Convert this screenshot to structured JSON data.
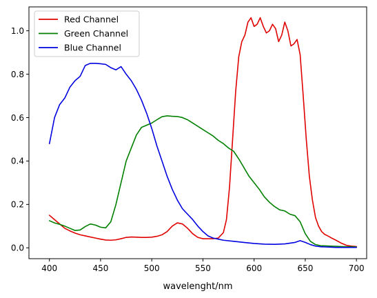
{
  "chart_data": {
    "type": "line",
    "title": "",
    "xlabel": "wavelenght/nm",
    "ylabel": "",
    "xlim": [
      380,
      710
    ],
    "ylim": [
      -0.05,
      1.11
    ],
    "xticks": [
      400,
      450,
      500,
      550,
      600,
      650,
      700
    ],
    "yticks": [
      0.0,
      0.2,
      0.4,
      0.6,
      0.8,
      1.0
    ],
    "xtick_labels": [
      "400",
      "450",
      "500",
      "550",
      "600",
      "650",
      "700"
    ],
    "ytick_labels": [
      "0.0",
      "0.2",
      "0.4",
      "0.6",
      "0.8",
      "1.0"
    ],
    "grid": false,
    "legend_position": "top-left",
    "series": [
      {
        "name": "Red Channel",
        "color": "#e00000",
        "x": [
          400,
          405,
          410,
          415,
          420,
          425,
          430,
          435,
          440,
          445,
          450,
          455,
          460,
          465,
          470,
          475,
          480,
          485,
          490,
          495,
          500,
          505,
          510,
          515,
          520,
          525,
          530,
          535,
          540,
          545,
          550,
          555,
          560,
          565,
          570,
          573,
          576,
          579,
          582,
          585,
          588,
          591,
          594,
          597,
          600,
          603,
          606,
          609,
          612,
          615,
          618,
          621,
          624,
          627,
          630,
          633,
          636,
          639,
          642,
          645,
          648,
          651,
          654,
          657,
          660,
          663,
          666,
          669,
          672,
          675,
          680,
          685,
          690,
          695,
          700
        ],
        "y": [
          0.15,
          0.13,
          0.11,
          0.09,
          0.078,
          0.068,
          0.06,
          0.055,
          0.05,
          0.045,
          0.04,
          0.036,
          0.035,
          0.037,
          0.042,
          0.048,
          0.05,
          0.049,
          0.048,
          0.048,
          0.049,
          0.053,
          0.06,
          0.075,
          0.1,
          0.115,
          0.11,
          0.09,
          0.065,
          0.048,
          0.042,
          0.042,
          0.042,
          0.045,
          0.07,
          0.13,
          0.28,
          0.5,
          0.72,
          0.88,
          0.95,
          0.98,
          1.04,
          1.06,
          1.02,
          1.03,
          1.06,
          1.02,
          0.99,
          1.0,
          1.03,
          1.01,
          0.95,
          0.98,
          1.04,
          1.0,
          0.93,
          0.94,
          0.96,
          0.89,
          0.7,
          0.5,
          0.33,
          0.22,
          0.14,
          0.1,
          0.075,
          0.062,
          0.055,
          0.047,
          0.035,
          0.022,
          0.012,
          0.008,
          0.006
        ]
      },
      {
        "name": "Green Channel",
        "color": "#008000",
        "x": [
          400,
          405,
          410,
          415,
          420,
          425,
          430,
          435,
          440,
          445,
          450,
          455,
          460,
          465,
          470,
          475,
          480,
          485,
          490,
          495,
          500,
          505,
          510,
          515,
          520,
          525,
          530,
          535,
          540,
          545,
          550,
          555,
          560,
          565,
          570,
          575,
          580,
          585,
          590,
          595,
          600,
          605,
          610,
          615,
          620,
          625,
          630,
          635,
          640,
          645,
          650,
          655,
          660,
          665,
          670,
          675,
          680,
          685,
          690,
          695,
          700
        ],
        "y": [
          0.125,
          0.115,
          0.108,
          0.1,
          0.09,
          0.08,
          0.082,
          0.098,
          0.11,
          0.105,
          0.095,
          0.092,
          0.12,
          0.2,
          0.3,
          0.4,
          0.46,
          0.52,
          0.555,
          0.565,
          0.575,
          0.59,
          0.604,
          0.608,
          0.606,
          0.605,
          0.6,
          0.59,
          0.575,
          0.56,
          0.545,
          0.53,
          0.515,
          0.495,
          0.48,
          0.46,
          0.445,
          0.41,
          0.37,
          0.33,
          0.3,
          0.27,
          0.235,
          0.21,
          0.19,
          0.175,
          0.17,
          0.155,
          0.148,
          0.12,
          0.065,
          0.03,
          0.015,
          0.01,
          0.009,
          0.008,
          0.007,
          0.006,
          0.005,
          0.005,
          0.004
        ]
      },
      {
        "name": "Blue Channel",
        "color": "#0000e0",
        "x": [
          400,
          405,
          410,
          415,
          420,
          425,
          430,
          435,
          440,
          445,
          450,
          455,
          460,
          465,
          470,
          475,
          480,
          485,
          490,
          495,
          500,
          505,
          510,
          515,
          520,
          525,
          530,
          535,
          540,
          545,
          550,
          555,
          560,
          565,
          570,
          580,
          590,
          600,
          610,
          620,
          630,
          640,
          645,
          650,
          655,
          660,
          665,
          670,
          675,
          680,
          690,
          700
        ],
        "y": [
          0.48,
          0.6,
          0.66,
          0.69,
          0.74,
          0.77,
          0.79,
          0.84,
          0.85,
          0.85,
          0.848,
          0.845,
          0.83,
          0.82,
          0.835,
          0.8,
          0.77,
          0.73,
          0.68,
          0.62,
          0.55,
          0.47,
          0.4,
          0.33,
          0.27,
          0.22,
          0.18,
          0.155,
          0.13,
          0.1,
          0.075,
          0.055,
          0.045,
          0.04,
          0.035,
          0.03,
          0.025,
          0.02,
          0.017,
          0.016,
          0.018,
          0.025,
          0.033,
          0.025,
          0.015,
          0.008,
          0.005,
          0.004,
          0.003,
          0.002,
          0.002,
          0.002
        ]
      }
    ]
  }
}
